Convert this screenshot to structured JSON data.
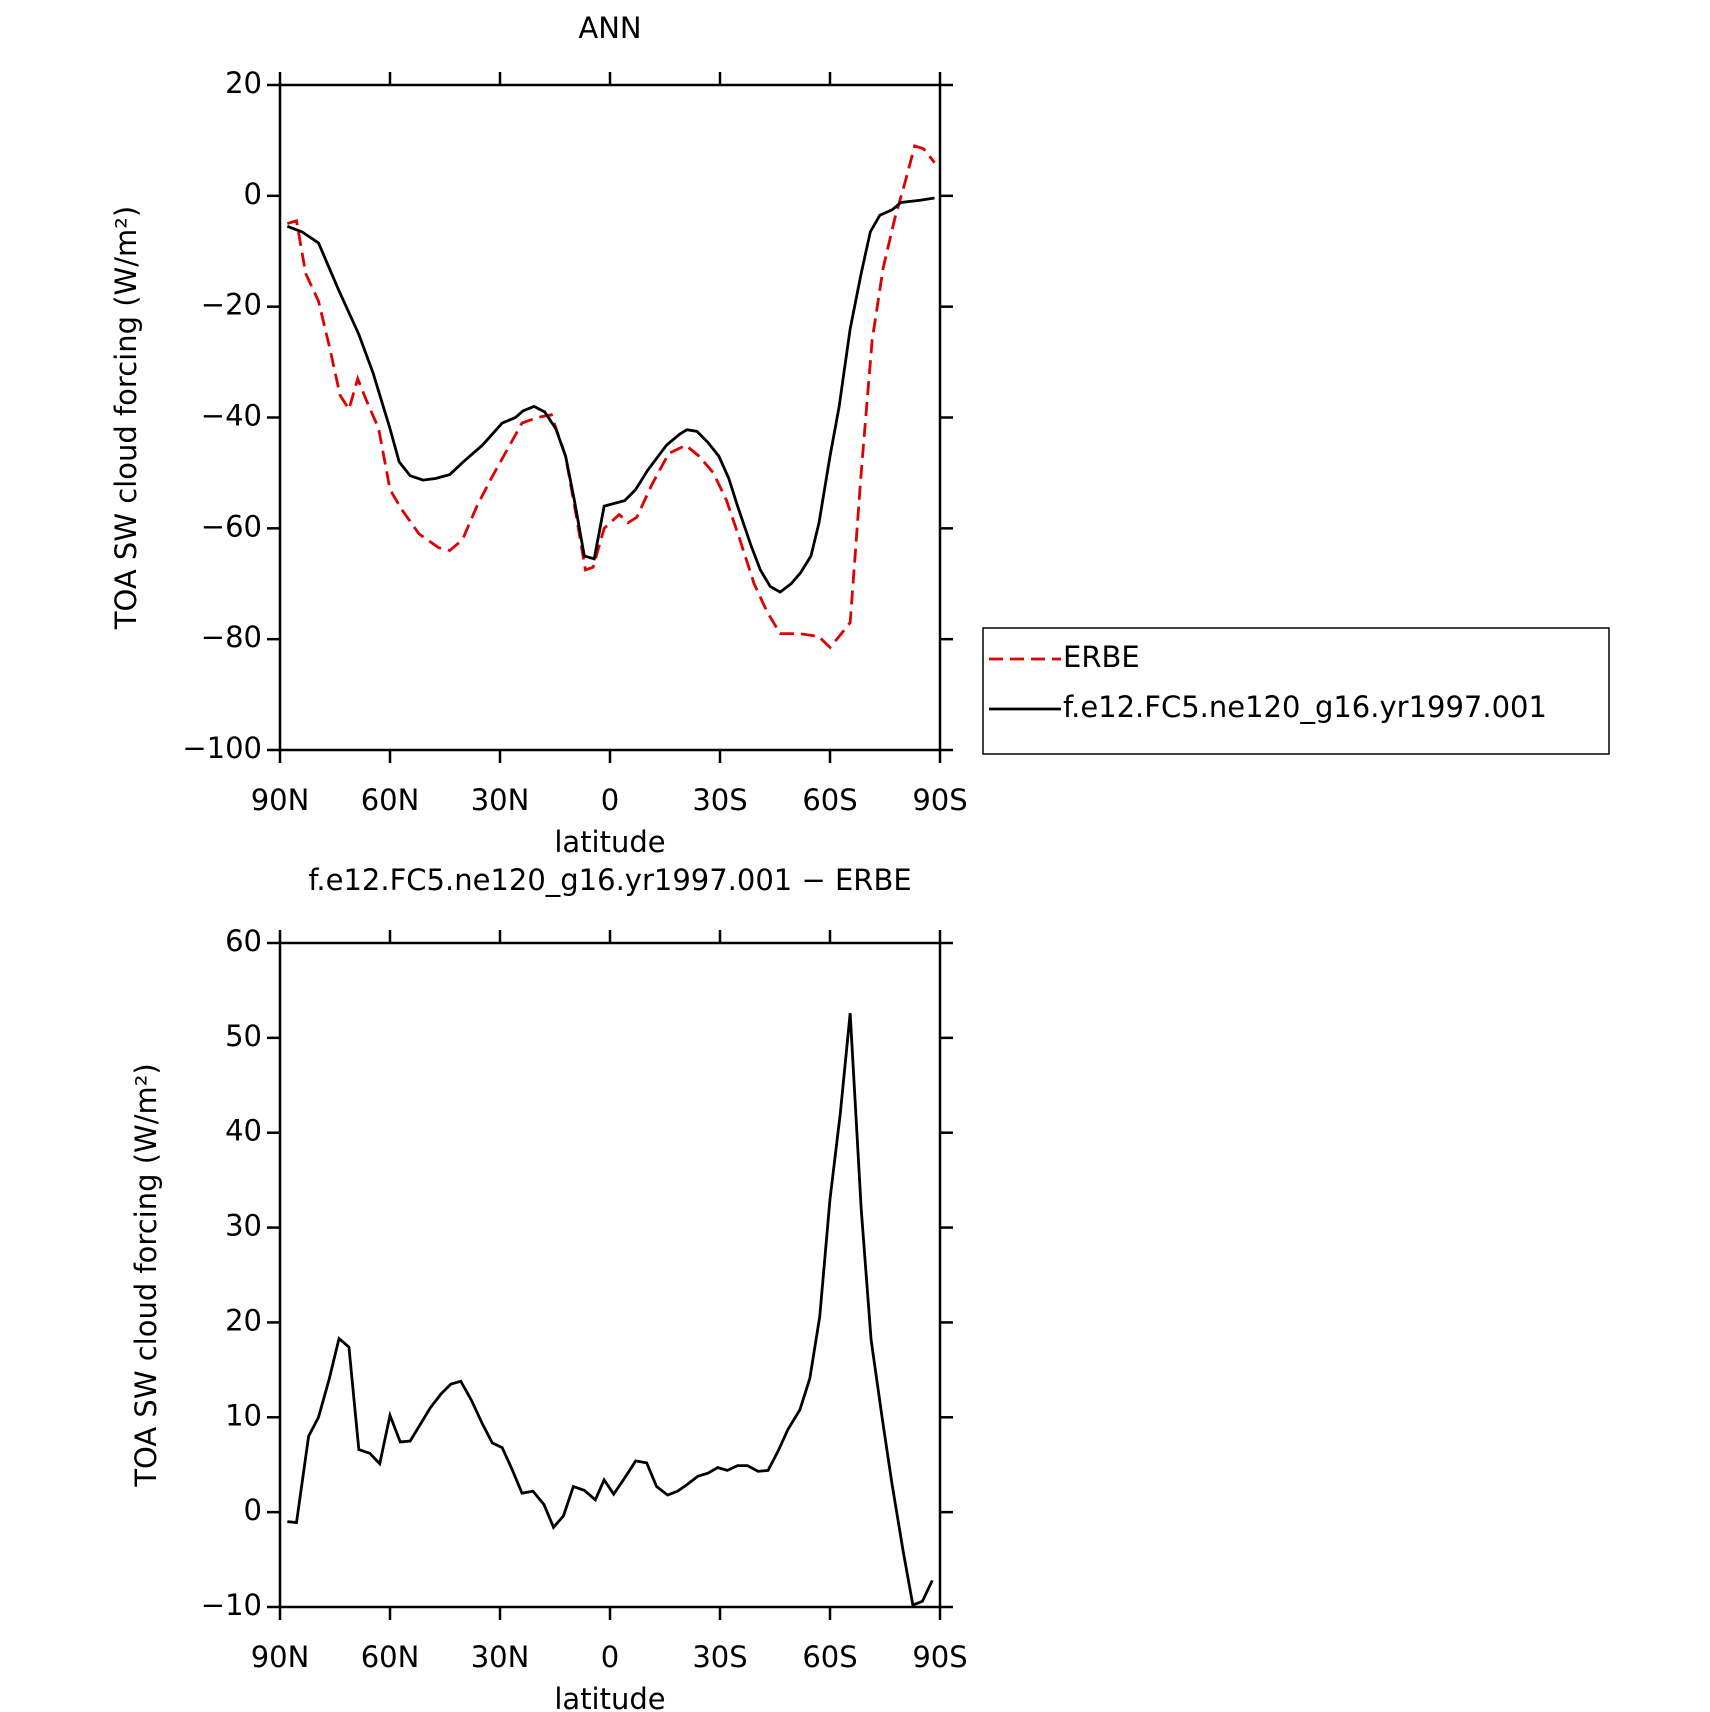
{
  "chart_data": [
    {
      "type": "line",
      "title": "ANN",
      "xlabel": "latitude",
      "ylabel": "TOA SW cloud forcing (W/m²)",
      "xlim": [
        90,
        -90
      ],
      "xticks": [
        {
          "value": 90,
          "label": "90N"
        },
        {
          "value": 60,
          "label": "60N"
        },
        {
          "value": 30,
          "label": "30N"
        },
        0,
        {
          "value": -30,
          "label": "30S"
        },
        {
          "value": -60,
          "label": "60S"
        },
        {
          "value": -90,
          "label": "90S"
        }
      ],
      "ylim": [
        -100,
        20
      ],
      "yticks": [
        {
          "value": -100,
          "label": "−100"
        },
        {
          "value": -80,
          "label": "−80"
        },
        {
          "value": -60,
          "label": "−60"
        },
        {
          "value": -40,
          "label": "−40"
        },
        {
          "value": -20,
          "label": "−20"
        },
        0,
        20
      ],
      "legend": "right",
      "series": [
        {
          "name": "ERBE",
          "color": "#e00000",
          "dash": "dashed",
          "x": [
            88,
            85.5,
            83,
            79.5,
            76.6,
            73.6,
            71.2,
            68.8,
            66.7,
            63.1,
            60,
            56.9,
            52.1,
            46.7,
            43.7,
            40.2,
            36.3,
            32.4,
            28.2,
            24,
            19.9,
            16,
            12.1,
            9.4,
            6.7,
            4.6,
            1.6,
            -2.5,
            -4.9,
            -7.3,
            -11.5,
            -16,
            -20.7,
            -24.3,
            -28.2,
            -31.8,
            -35.4,
            -39.3,
            -42.8,
            -46.4,
            -51.7,
            -56.9,
            -60,
            -62.5,
            -65.5,
            -68.5,
            -71.5,
            -74.5,
            -77.7,
            -80.7,
            -83.1,
            -85.5,
            -88.5
          ],
          "values": [
            -5,
            -4.5,
            -14,
            -19,
            -27,
            -36,
            -38.5,
            -33,
            -36.5,
            -42,
            -53,
            -56.5,
            -61,
            -63.5,
            -64,
            -62,
            -56,
            -51,
            -46,
            -41,
            -40,
            -39.5,
            -47,
            -57,
            -67.5,
            -67,
            -60,
            -57.5,
            -59,
            -58,
            -52,
            -46.5,
            -45,
            -47,
            -50,
            -55,
            -62,
            -70,
            -75,
            -79,
            -79,
            -79.5,
            -81.5,
            -79.5,
            -77,
            -50,
            -26,
            -13,
            -4,
            3,
            9,
            8.5,
            6
          ]
        },
        {
          "name": "f.e12.FC5.ne120_g16.yr1997.001",
          "color": "#000000",
          "dash": "solid",
          "x": [
            88,
            84,
            79.5,
            74,
            68.5,
            64.6,
            60,
            57.5,
            54.5,
            51,
            47.6,
            43.7,
            40,
            34.8,
            29.4,
            25.8,
            23.7,
            20.7,
            17.8,
            14.8,
            12.1,
            9.7,
            7,
            4.3,
            1.6,
            -4,
            -7,
            -10.3,
            -15.4,
            -19,
            -21,
            -23.7,
            -26.7,
            -29.7,
            -32.4,
            -34.8,
            -38.4,
            -41,
            -43.7,
            -46.4,
            -49.4,
            -52,
            -54.8,
            -57,
            -60,
            -62.5,
            -65.5,
            -68.5,
            -71,
            -73.6,
            -77,
            -79.3,
            -84.6,
            -88.5
          ],
          "values": [
            -5.5,
            -6.5,
            -8.5,
            -17,
            -25,
            -32,
            -42,
            -48,
            -50.5,
            -51.3,
            -51,
            -50.3,
            -48,
            -45,
            -41,
            -40,
            -38.8,
            -38,
            -39,
            -42,
            -47,
            -55,
            -65,
            -65.5,
            -56,
            -55,
            -53,
            -49.5,
            -45,
            -43,
            -42.2,
            -42.5,
            -44.5,
            -47,
            -51,
            -56,
            -63,
            -67.5,
            -70.5,
            -71.5,
            -70,
            -68,
            -65,
            -59,
            -47,
            -38,
            -24,
            -14,
            -6.5,
            -3.5,
            -2.5,
            -1.2,
            -0.8,
            -0.4
          ]
        }
      ]
    },
    {
      "type": "line",
      "title": "f.e12.FC5.ne120_g16.yr1997.001 − ERBE",
      "xlabel": "latitude",
      "ylabel": "TOA SW cloud forcing (W/m²)",
      "xlim": [
        90,
        -90
      ],
      "xticks": [
        {
          "value": 90,
          "label": "90N"
        },
        {
          "value": 60,
          "label": "60N"
        },
        {
          "value": 30,
          "label": "30N"
        },
        0,
        {
          "value": -30,
          "label": "30S"
        },
        {
          "value": -60,
          "label": "60S"
        },
        {
          "value": -90,
          "label": "90S"
        }
      ],
      "ylim": [
        -10,
        60
      ],
      "yticks": [
        {
          "value": -10,
          "label": "−10"
        },
        0,
        10,
        20,
        30,
        40,
        50,
        60
      ],
      "series": [
        {
          "color": "#000000",
          "dash": "solid",
          "x": [
            88,
            85.5,
            82.2,
            79.5,
            76.6,
            73.9,
            71.2,
            68.5,
            65.5,
            62.8,
            60,
            57.2,
            54.5,
            49,
            46,
            43.4,
            40.7,
            37.8,
            34.8,
            32.1,
            29.4,
            26.7,
            24,
            21,
            18,
            15.4,
            12.7,
            10,
            7,
            4,
            1.6,
            -1,
            -4,
            -7,
            -10,
            -12.7,
            -15.7,
            -18.4,
            -21,
            -24,
            -26.7,
            -29.4,
            -32,
            -34.8,
            -37.5,
            -40.4,
            -43.1,
            -45.8,
            -48.5,
            -51.8,
            -54.5,
            -57.2,
            -60,
            -62.8,
            -65.5,
            -68.5,
            -71.2,
            -74.2,
            -76.9,
            -79.9,
            -82.6,
            -85.2,
            -87.9
          ],
          "values": [
            -1,
            -1.1,
            8,
            10,
            14,
            18.3,
            17.4,
            6.6,
            6.2,
            5.1,
            10.2,
            7.4,
            7.5,
            11,
            12.5,
            13.5,
            13.8,
            11.8,
            9.3,
            7.3,
            6.8,
            4.5,
            2,
            2.2,
            0.8,
            -1.6,
            -0.4,
            2.7,
            2.3,
            1.3,
            3.4,
            1.9,
            3.6,
            5.4,
            5.2,
            2.7,
            1.8,
            2.2,
            2.9,
            3.8,
            4.1,
            4.7,
            4.4,
            4.9,
            4.9,
            4.3,
            4.4,
            6.4,
            8.7,
            10.8,
            14.1,
            20.6,
            33,
            42,
            52.6,
            32,
            18.2,
            10,
            3,
            -4,
            -9.8,
            -9.4,
            -7.2
          ]
        }
      ]
    }
  ]
}
